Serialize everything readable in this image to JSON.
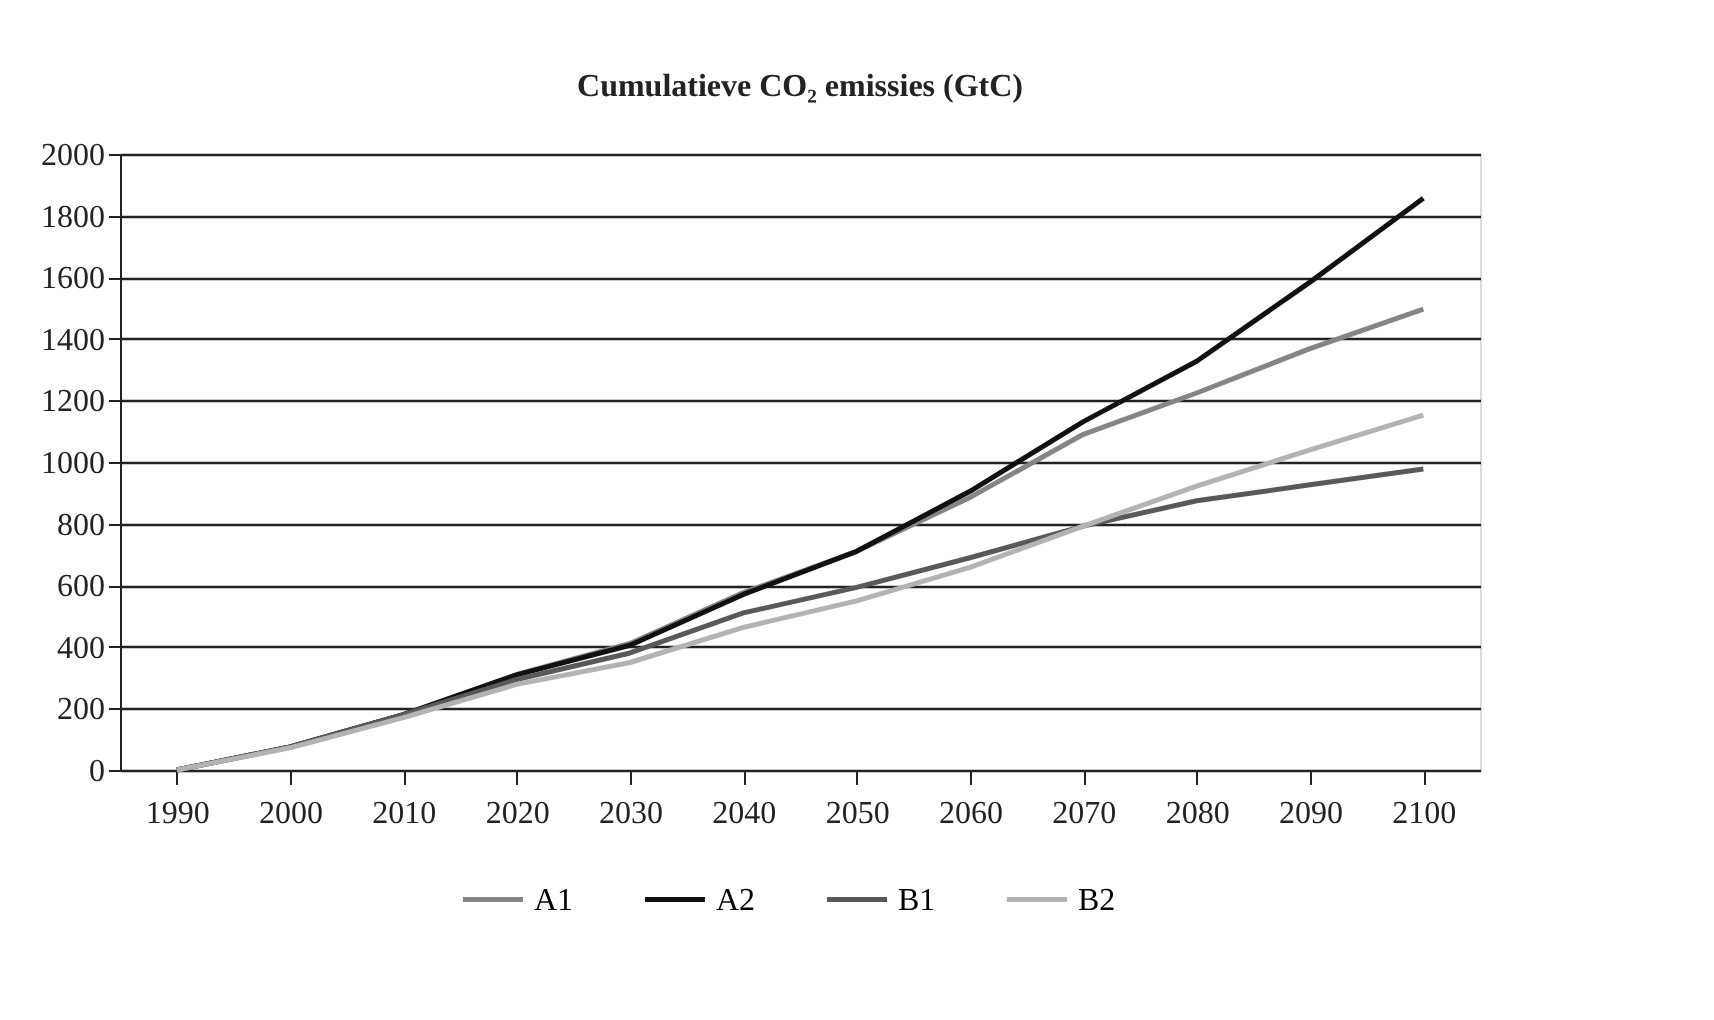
{
  "chart_data": {
    "type": "line",
    "title": "Cumulatieve CO₂ emissies (GtC)",
    "categories": [
      "1990",
      "2000",
      "2010",
      "2020",
      "2030",
      "2040",
      "2050",
      "2060",
      "2070",
      "2080",
      "2090",
      "2100"
    ],
    "series": [
      {
        "name": "A1",
        "color": "#858585",
        "values": [
          0,
          75,
          180,
          310,
          411,
          576,
          710,
          885,
          1090,
          1224,
          1368,
          1496
        ]
      },
      {
        "name": "A2",
        "color": "#111111",
        "values": [
          0,
          75,
          180,
          309,
          405,
          570,
          710,
          905,
          1131,
          1327,
          1584,
          1856
        ]
      },
      {
        "name": "B1",
        "color": "#595959",
        "values": [
          0,
          75,
          180,
          294,
          380,
          510,
          593,
          689,
          792,
          874,
          926,
          977
        ]
      },
      {
        "name": "B2",
        "color": "#b3b3b3",
        "values": [
          0,
          72,
          170,
          278,
          349,
          463,
          549,
          658,
          792,
          922,
          1039,
          1152
        ]
      }
    ],
    "ylim": [
      0,
      2000
    ],
    "yticks": [
      0,
      200,
      400,
      600,
      800,
      1000,
      1200,
      1400,
      1600,
      1800,
      2000
    ],
    "grid": "y",
    "legend": "bottom",
    "marker": "none",
    "line_style": "solid"
  }
}
